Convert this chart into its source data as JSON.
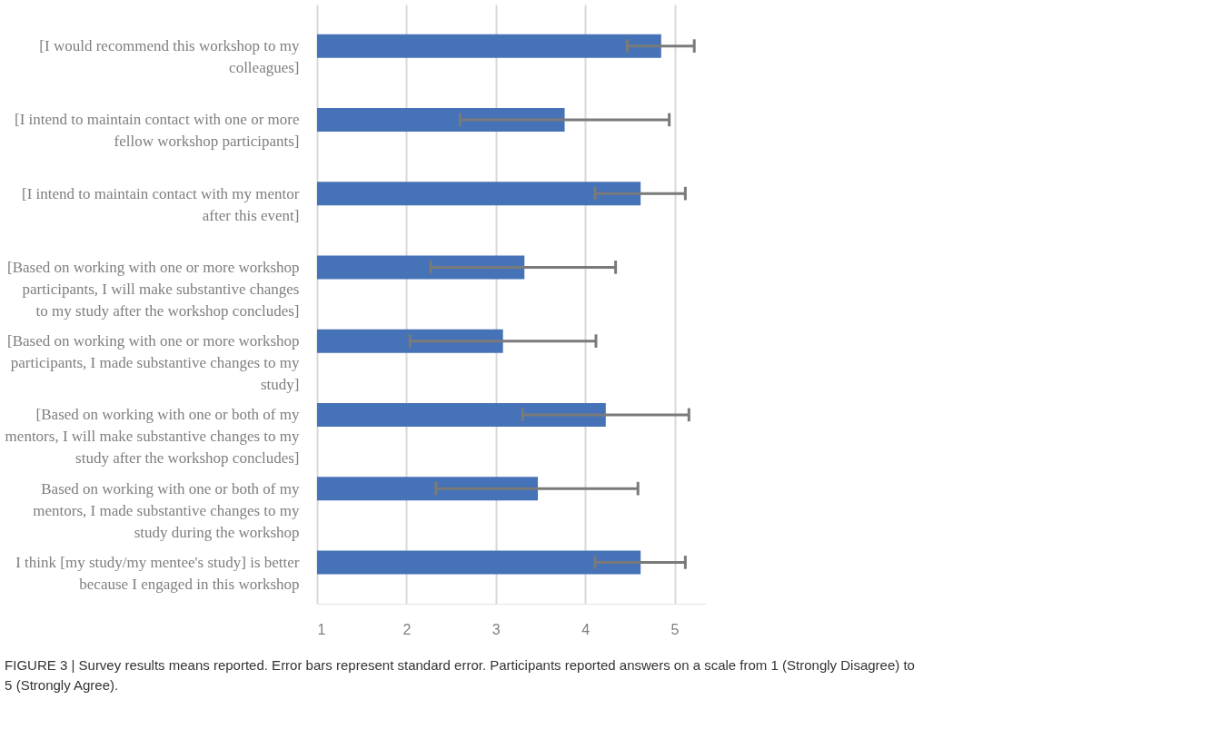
{
  "chart_data": {
    "type": "bar",
    "orientation": "horizontal",
    "categories": [
      "[I would recommend this workshop to my colleagues]",
      "[I intend to maintain contact with one or more fellow workshop participants]",
      "[I intend to maintain contact with my mentor after this event]",
      "[Based on working with one or more workshop participants, I will make substantive changes to my study after the workshop concludes]",
      "[Based on working with one or more workshop participants, I made substantive changes to my study]",
      "[Based on working with one or both of my mentors, I will make substantive changes to my study after the workshop concludes]",
      "Based on working with one or both of my mentors, I made substantive changes to my study during the workshop",
      "I think [my study/my mentee's study] is better because I engaged in this workshop"
    ],
    "series": [
      {
        "color": "#4672b7",
        "values": [
          4.85,
          3.77,
          4.62,
          3.32,
          3.08,
          4.23,
          3.47,
          4.62
        ],
        "errors": [
          [
            4.47,
            5.22
          ],
          [
            2.6,
            4.94
          ],
          [
            4.11,
            5.12
          ],
          [
            2.27,
            4.34
          ],
          [
            2.04,
            4.12
          ],
          [
            3.3,
            5.16
          ],
          [
            2.33,
            4.59
          ],
          [
            4.11,
            5.12
          ]
        ]
      }
    ],
    "xlim": [
      1,
      5.35
    ],
    "xticks": [
      1,
      2,
      3,
      4,
      5
    ],
    "grid": "x",
    "annotations": [
      "FIGURE 3 | Survey results means reported. Error bars represent standard error. Participants reported answers on a scale from 1 (Strongly Disagree) to 5 (Strongly Agree)."
    ]
  }
}
